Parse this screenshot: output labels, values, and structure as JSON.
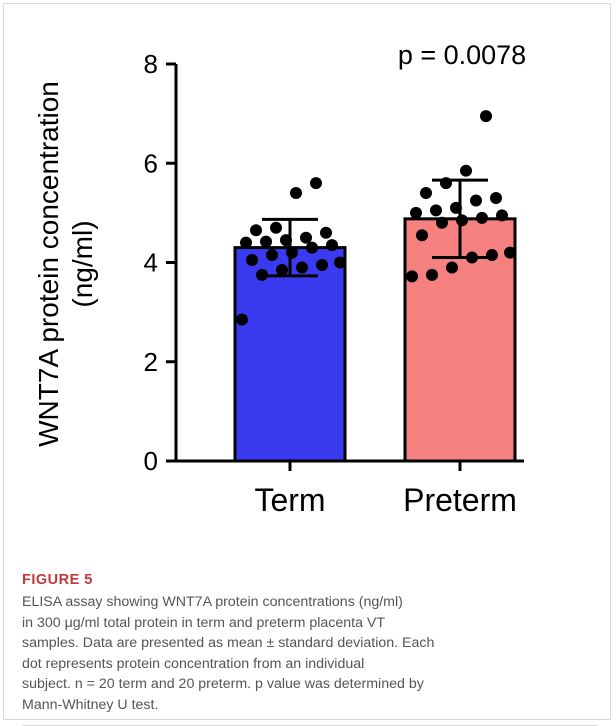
{
  "chart_data": {
    "type": "bar",
    "title": "",
    "xlabel": "",
    "ylabel_lines": [
      "WNT7A protein concentration",
      "(ng/ml)"
    ],
    "ylim": [
      0,
      8
    ],
    "yticks": [
      0,
      2,
      4,
      6,
      8
    ],
    "categories": [
      "Term",
      "Preterm"
    ],
    "means": [
      4.3,
      4.88
    ],
    "sd": [
      0.57,
      0.78
    ],
    "bar_colors": [
      "#3a3af0",
      "#f58080"
    ],
    "points": [
      [
        2.85,
        3.75,
        3.85,
        3.9,
        3.95,
        4.0,
        4.05,
        4.15,
        4.2,
        4.3,
        4.35,
        4.4,
        4.42,
        4.45,
        4.5,
        4.6,
        4.65,
        4.7,
        5.4,
        5.6
      ],
      [
        3.72,
        3.75,
        3.9,
        4.1,
        4.15,
        4.2,
        4.55,
        4.8,
        4.85,
        4.9,
        4.95,
        5.0,
        5.05,
        5.1,
        5.25,
        5.3,
        5.4,
        5.6,
        5.85,
        6.95
      ]
    ],
    "annotation": "p = 0.0078"
  },
  "caption": {
    "figure_label": "FIGURE 5",
    "lines": [
      "ELISA assay showing WNT7A protein concentrations (ng/ml)",
      "in 300 μg/ml total protein in term and preterm placenta VT",
      "samples. Data are presented as mean ± standard deviation. Each",
      "dot represents protein concentration from an individual",
      "subject. n = 20 term and 20 preterm. p value was determined by",
      "Mann-Whitney U test."
    ]
  }
}
